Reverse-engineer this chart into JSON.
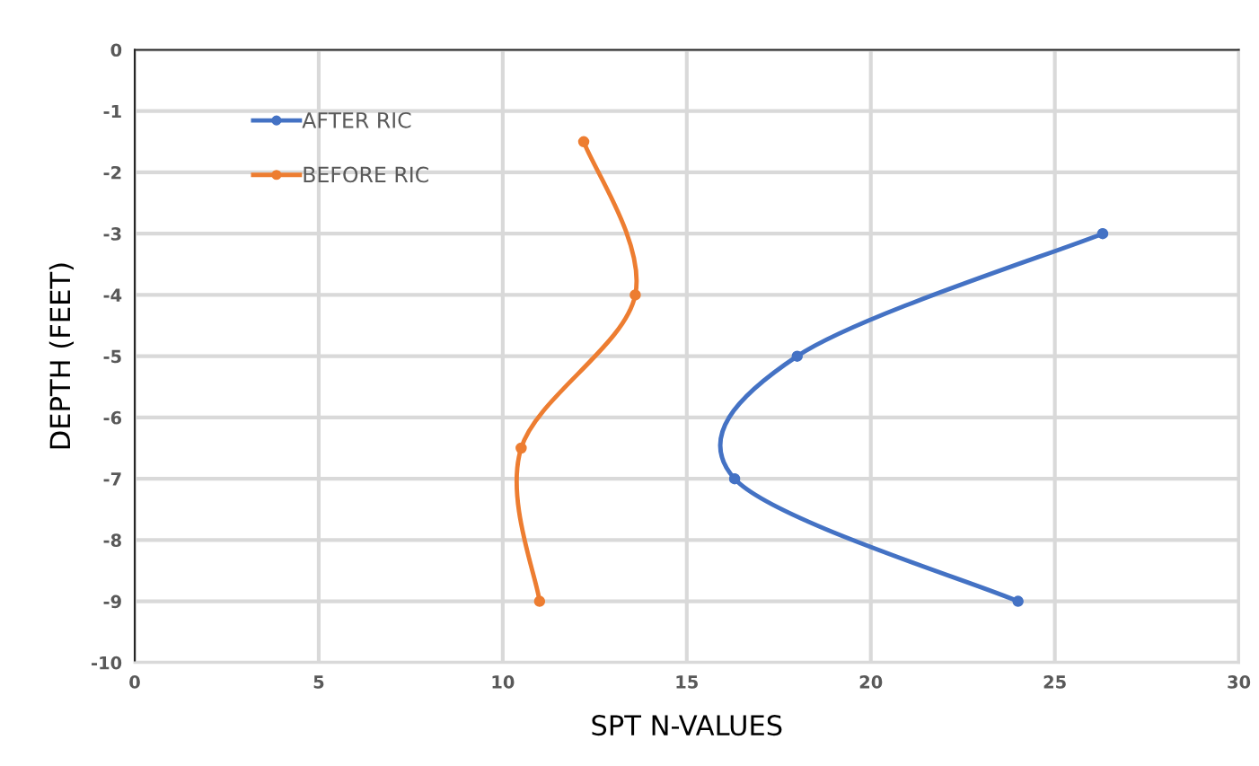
{
  "chart_data": {
    "type": "line",
    "xlabel": "SPT N-VALUES",
    "ylabel": "DEPTH (FEET)",
    "xlim": [
      0,
      30
    ],
    "xticks": [
      0,
      5,
      10,
      15,
      20,
      25,
      30
    ],
    "ylim": [
      -10,
      0
    ],
    "yticks": [
      -10,
      -9,
      -8,
      -7,
      -6,
      -5,
      -4,
      -3,
      -2,
      -1,
      0
    ],
    "grid": true,
    "legend": "top left",
    "marker": "circle",
    "line_style": "solid",
    "series": [
      {
        "name": "AFTER RIC",
        "color": "#4472c4",
        "x": [
          26.3,
          18.0,
          16.3,
          24.0
        ],
        "values": [
          -3,
          -5,
          -7,
          -9
        ]
      },
      {
        "name": "BEFORE RIC",
        "color": "#ed7d31",
        "x": [
          12.2,
          13.6,
          10.5,
          11.0
        ],
        "values": [
          -1.5,
          -4,
          -6.5,
          -9
        ]
      }
    ]
  }
}
